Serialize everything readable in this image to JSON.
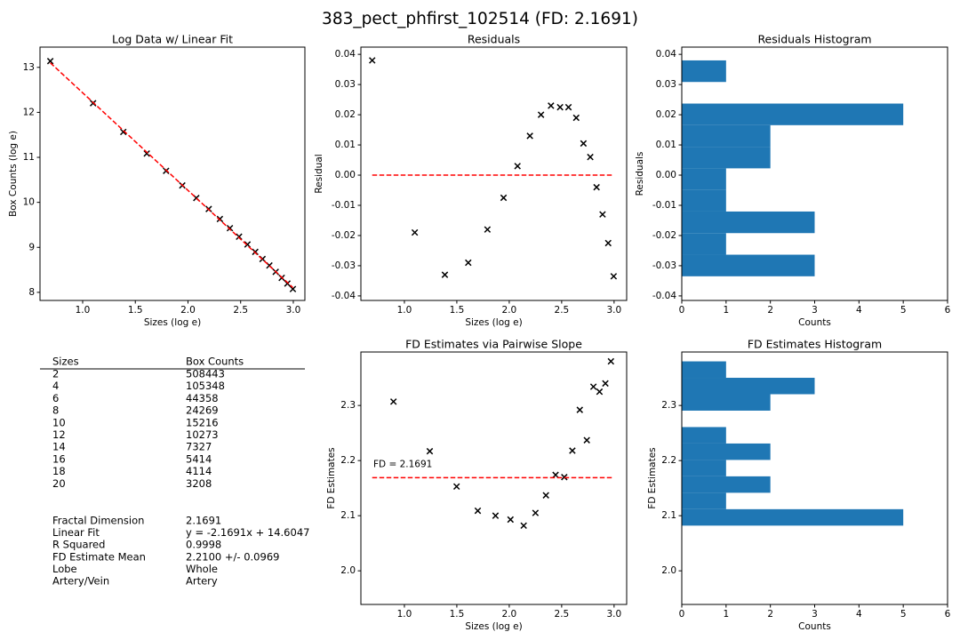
{
  "title": "383_pect_phfirst_102514 (FD: 2.1691)",
  "chart_data": [
    {
      "type": "scatter",
      "title": "Log Data w/ Linear Fit",
      "xlabel": "Sizes (log e)",
      "ylabel": "Box Counts (log e)",
      "xlim": [
        0.595,
        3.11
      ],
      "xticks": [
        {
          "value": 1,
          "label": "1.0"
        },
        1.5,
        {
          "value": 2,
          "label": "2.0"
        },
        2.5,
        {
          "value": 3,
          "label": "3.0"
        }
      ],
      "ylim": [
        7.82,
        13.45
      ],
      "yticks": [
        8,
        9,
        10,
        11,
        12,
        13
      ],
      "series": [
        {
          "type": "scatter",
          "color": "#000000",
          "x": [
            0.693,
            1.099,
            1.386,
            1.609,
            1.792,
            1.946,
            2.079,
            2.197,
            2.303,
            2.398,
            2.485,
            2.565,
            2.639,
            2.708,
            2.773,
            2.833,
            2.89,
            2.944,
            2.996
          ],
          "values": [
            13.139,
            12.203,
            11.565,
            11.085,
            10.7,
            10.376,
            10.097,
            9.852,
            9.63,
            9.426,
            9.237,
            9.064,
            8.899,
            8.741,
            8.597,
            8.455,
            8.322,
            8.196,
            8.073
          ]
        },
        {
          "type": "line",
          "color": "#ff0000",
          "dashed": true,
          "x": [
            0.693,
            2.996
          ],
          "values": [
            13.101,
            8.106
          ]
        }
      ]
    },
    {
      "type": "scatter",
      "title": "Residuals",
      "xlabel": "Sizes (log e)",
      "ylabel": "Residual",
      "xlim": [
        0.585,
        3.12
      ],
      "xticks": [
        {
          "value": 1,
          "label": "1.0"
        },
        1.5,
        {
          "value": 2,
          "label": "2.0"
        },
        2.5,
        {
          "value": 3,
          "label": "3.0"
        }
      ],
      "ylim": [
        -0.0415,
        0.0424
      ],
      "yticks": [
        -0.04,
        -0.03,
        -0.02,
        -0.01,
        {
          "value": 0,
          "label": "0.00"
        },
        0.01,
        0.02,
        0.03,
        0.04
      ],
      "series": [
        {
          "type": "scatter",
          "color": "#000000",
          "x": [
            0.693,
            1.099,
            1.386,
            1.609,
            1.792,
            1.946,
            2.079,
            2.197,
            2.303,
            2.398,
            2.485,
            2.565,
            2.639,
            2.708,
            2.773,
            2.833,
            2.89,
            2.944,
            2.996
          ],
          "values": [
            0.038,
            -0.019,
            -0.033,
            -0.029,
            -0.018,
            -0.0075,
            0.003,
            0.013,
            0.02,
            0.023,
            0.0225,
            0.0225,
            0.019,
            0.0105,
            0.006,
            -0.004,
            -0.013,
            -0.0225,
            -0.0335
          ]
        },
        {
          "type": "line",
          "color": "#ff0000",
          "dashed": true,
          "x": [
            0.693,
            2.996
          ],
          "values": [
            0,
            0
          ]
        }
      ]
    },
    {
      "type": "histogram",
      "orientation": "horizontal",
      "title": "Residuals Histogram",
      "xlabel": "Counts",
      "ylabel": "Residuals",
      "color": "#1f77b4",
      "xlim": [
        0,
        6
      ],
      "xticks": [
        0,
        1,
        2,
        3,
        4,
        5,
        6
      ],
      "ylim": [
        -0.0415,
        0.0424
      ],
      "yticks": [
        -0.04,
        -0.03,
        -0.02,
        -0.01,
        {
          "value": 0,
          "label": "0.00"
        },
        0.01,
        0.02,
        0.03,
        0.04
      ],
      "bins": [
        -0.0335,
        -0.02635,
        -0.0192,
        -0.01205,
        -0.0049,
        0.00225,
        0.0094,
        0.01655,
        0.0237,
        0.03085,
        0.038
      ],
      "values": [
        3,
        1,
        3,
        1,
        1,
        2,
        2,
        5,
        0,
        1
      ]
    },
    {
      "type": "scatter",
      "title": "FD Estimates via Pairwise Slope",
      "xlabel": "Sizes (log e)",
      "ylabel": "FD Estimates",
      "annotations": [
        "FD = 2.1691"
      ],
      "xlim": [
        0.585,
        3.12
      ],
      "xticks": [
        {
          "value": 1,
          "label": "1.0"
        },
        1.5,
        {
          "value": 2,
          "label": "2.0"
        },
        2.5,
        {
          "value": 3,
          "label": "3.0"
        }
      ],
      "ylim": [
        1.939,
        2.397
      ],
      "yticks": [
        {
          "value": 2,
          "label": "2.0"
        },
        2.1,
        2.2,
        2.3
      ],
      "series": [
        {
          "type": "scatter",
          "color": "#000000",
          "x": [
            0.896,
            1.242,
            1.498,
            1.7,
            1.869,
            2.012,
            2.138,
            2.25,
            2.35,
            2.442,
            2.525,
            2.602,
            2.673,
            2.74,
            2.803,
            2.861,
            2.917,
            2.97
          ],
          "values": [
            2.307,
            2.217,
            2.153,
            2.109,
            2.1,
            2.093,
            2.082,
            2.105,
            2.137,
            2.174,
            2.17,
            2.218,
            2.292,
            2.237,
            2.334,
            2.325,
            2.34,
            2.38
          ]
        },
        {
          "type": "line",
          "color": "#ff0000",
          "dashed": true,
          "x": [
            0.693,
            2.996
          ],
          "values": [
            2.1691,
            2.1691
          ]
        }
      ]
    },
    {
      "type": "histogram",
      "orientation": "horizontal",
      "title": "FD Estimates Histogram",
      "xlabel": "Counts",
      "ylabel": "FD Estimates",
      "color": "#1f77b4",
      "xlim": [
        0,
        6
      ],
      "xticks": [
        0,
        1,
        2,
        3,
        4,
        5,
        6
      ],
      "ylim": [
        1.939,
        2.397
      ],
      "yticks": [
        {
          "value": 2,
          "label": "2.0"
        },
        2.1,
        2.2,
        2.3
      ],
      "bins": [
        2.082,
        2.1118,
        2.1416,
        2.1714,
        2.2012,
        2.231,
        2.2608,
        2.2906,
        2.3204,
        2.3502,
        2.38
      ],
      "values": [
        5,
        1,
        2,
        1,
        2,
        1,
        0,
        2,
        3,
        1
      ]
    }
  ],
  "table": {
    "columns": [
      "Sizes",
      "Box Counts"
    ],
    "rows": [
      [
        2,
        508443
      ],
      [
        4,
        105348
      ],
      [
        6,
        44358
      ],
      [
        8,
        24269
      ],
      [
        10,
        15216
      ],
      [
        12,
        10273
      ],
      [
        14,
        7327
      ],
      [
        16,
        5414
      ],
      [
        18,
        4114
      ],
      [
        20,
        3208
      ]
    ]
  },
  "summary": {
    "rows": [
      [
        "Fractal Dimension",
        2.1691
      ],
      [
        "Linear Fit",
        "y = -2.1691x + 14.6047"
      ],
      [
        "R Squared",
        0.9998
      ],
      [
        "FD Estimate Mean",
        "2.2100 +/- 0.0969"
      ],
      [
        "Lobe",
        "Whole"
      ],
      [
        "Artery/Vein",
        "Artery"
      ]
    ]
  }
}
